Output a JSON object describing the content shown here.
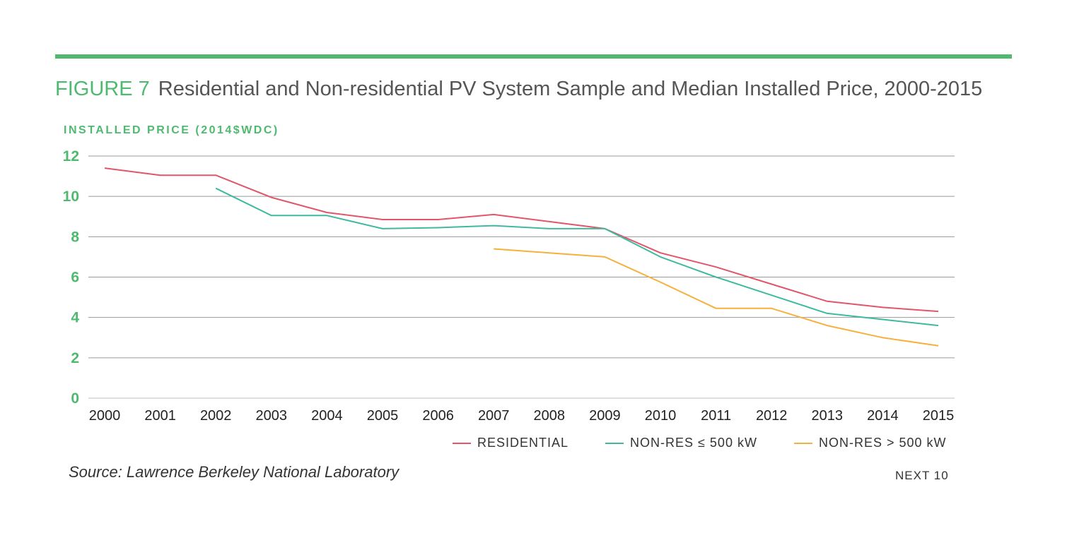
{
  "figure": {
    "number": "FIGURE 7",
    "title": "Residential and Non-residential PV System Sample and Median Installed Price, 2000-2015"
  },
  "source": "Source: Lawrence Berkeley National Laboratory",
  "brand": "NEXT 10",
  "colors": {
    "accent": "#4fba6f",
    "residential": "#e0566a",
    "nonres_small": "#3fb9a0",
    "nonres_large": "#f6b03c"
  },
  "chart_data": {
    "type": "line",
    "ylabel": "INSTALLED PRICE (2014$WDC)",
    "xlabel": "",
    "ylim": [
      0,
      12
    ],
    "yticks": [
      0,
      2,
      4,
      6,
      8,
      10,
      12
    ],
    "grid": true,
    "legend_position": "bottom-right",
    "x": [
      "2000",
      "2001",
      "2002",
      "2003",
      "2004",
      "2005",
      "2006",
      "2007",
      "2008",
      "2009",
      "2010",
      "2011",
      "2012",
      "2013",
      "2014",
      "2015"
    ],
    "series": [
      {
        "name": "RESIDENTIAL",
        "color": "#e0566a",
        "values": [
          11.4,
          11.05,
          11.05,
          9.95,
          9.2,
          8.85,
          8.85,
          9.1,
          8.75,
          8.4,
          7.2,
          6.5,
          5.65,
          4.8,
          4.5,
          4.3
        ]
      },
      {
        "name": "NON-RES ≤ 500 kW",
        "color": "#3fb9a0",
        "values": [
          null,
          null,
          10.4,
          9.05,
          9.05,
          8.4,
          8.45,
          8.55,
          8.4,
          8.4,
          7.0,
          6.0,
          5.1,
          4.2,
          3.9,
          3.6
        ]
      },
      {
        "name": "NON-RES > 500 kW",
        "color": "#f6b03c",
        "values": [
          null,
          null,
          null,
          null,
          null,
          null,
          null,
          7.4,
          7.2,
          7.0,
          5.75,
          4.45,
          4.45,
          3.6,
          3.0,
          2.6
        ]
      }
    ]
  }
}
